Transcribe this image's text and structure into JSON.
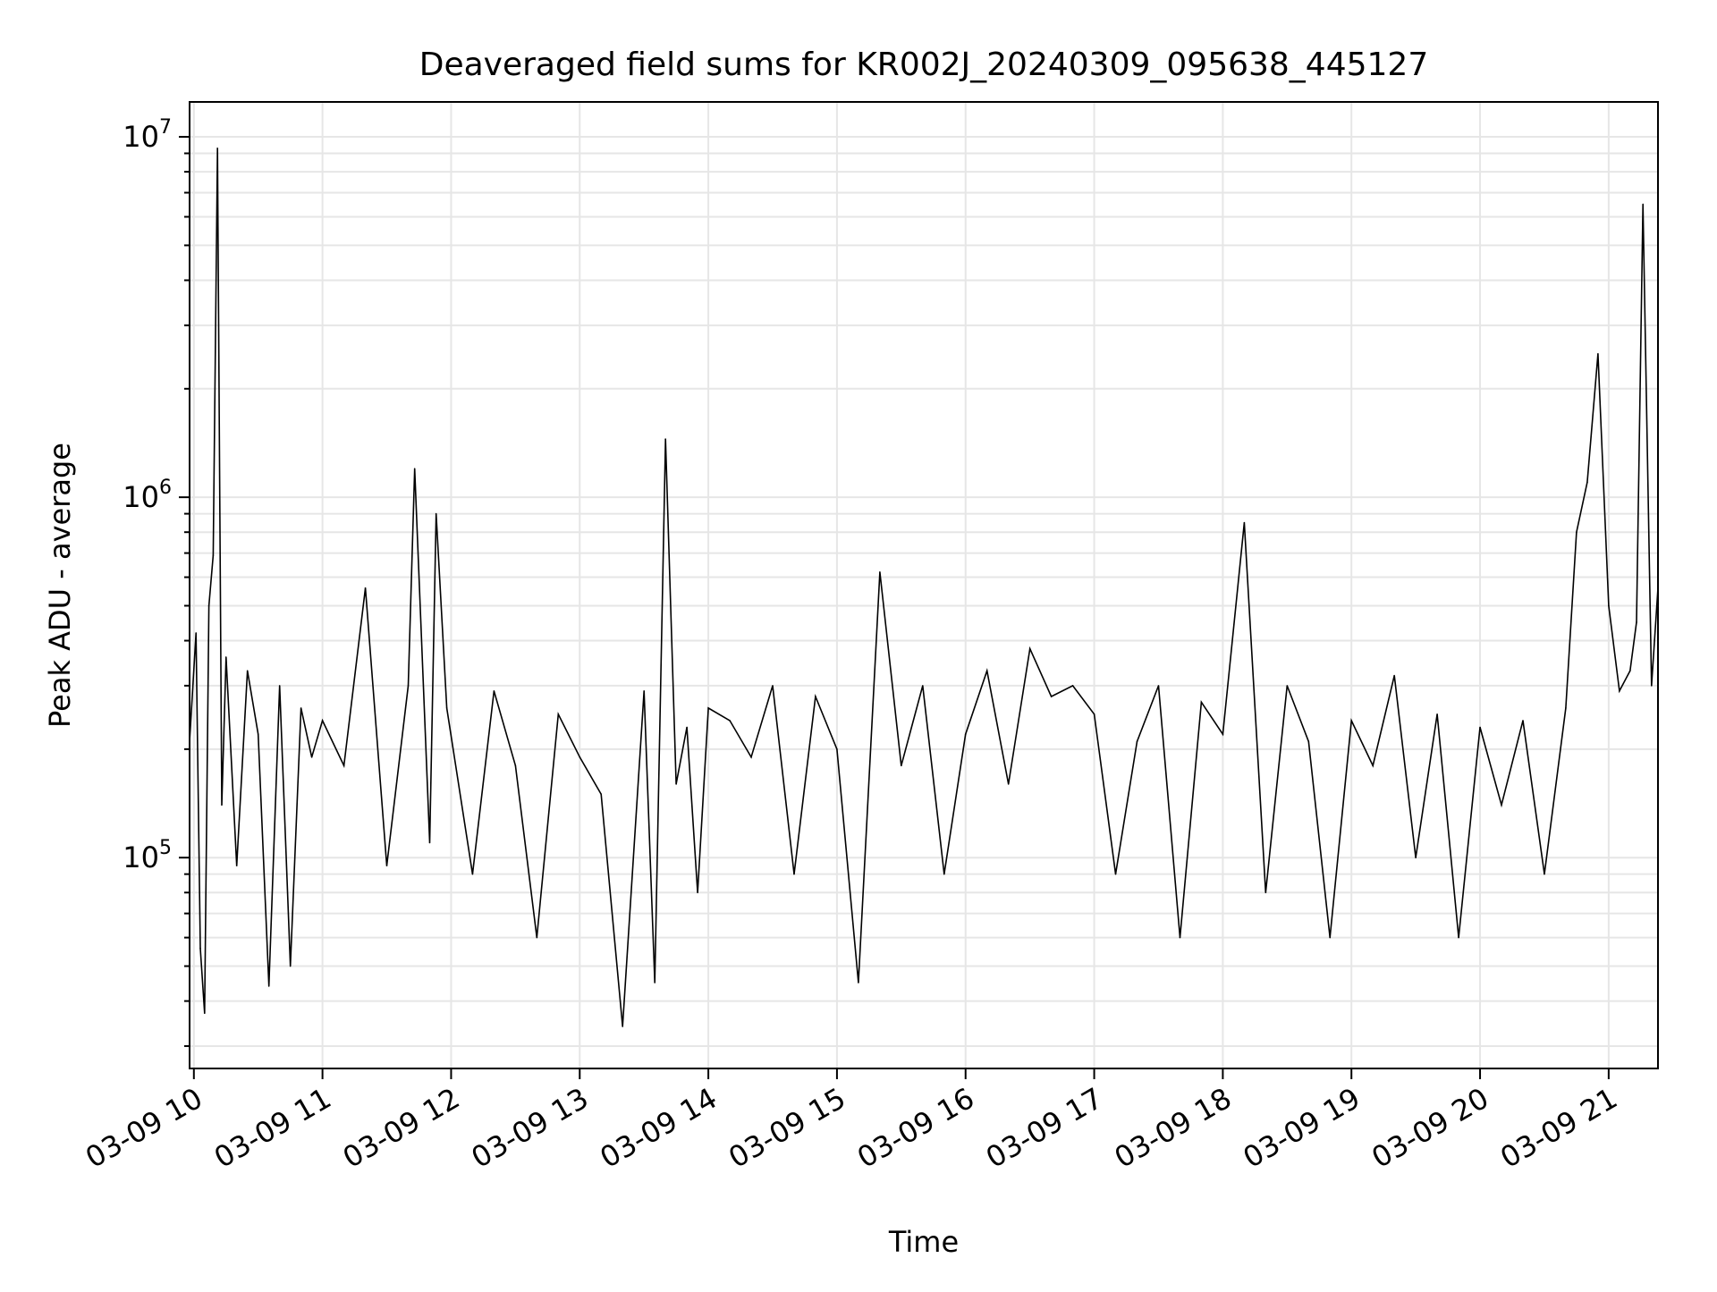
{
  "chart_data": {
    "type": "line",
    "title": "Deaveraged field sums for KR002J_20240309_095638_445127",
    "xlabel": "Time",
    "ylabel": "Peak ADU - average",
    "yscale": "log",
    "ylim": [
      26000,
      12500000
    ],
    "xlim": [
      "03-09 09:58",
      "03-09 21:23"
    ],
    "grid": true,
    "grid_minor": true,
    "line_color": "#000000",
    "x_ticks": [
      {
        "value": "03-09 10:00",
        "label": "03-09 10"
      },
      {
        "value": "03-09 11:00",
        "label": "03-09 11"
      },
      {
        "value": "03-09 12:00",
        "label": "03-09 12"
      },
      {
        "value": "03-09 13:00",
        "label": "03-09 13"
      },
      {
        "value": "03-09 14:00",
        "label": "03-09 14"
      },
      {
        "value": "03-09 15:00",
        "label": "03-09 15"
      },
      {
        "value": "03-09 16:00",
        "label": "03-09 16"
      },
      {
        "value": "03-09 17:00",
        "label": "03-09 17"
      },
      {
        "value": "03-09 18:00",
        "label": "03-09 18"
      },
      {
        "value": "03-09 19:00",
        "label": "03-09 19"
      },
      {
        "value": "03-09 20:00",
        "label": "03-09 20"
      },
      {
        "value": "03-09 21:00",
        "label": "03-09 21"
      }
    ],
    "y_ticks": [
      {
        "value": 100000,
        "base": "10",
        "exp": "5"
      },
      {
        "value": 1000000,
        "base": "10",
        "exp": "6"
      },
      {
        "value": 10000000,
        "base": "10",
        "exp": "7"
      }
    ],
    "series": [
      {
        "x": [
          "03-09 09:58",
          "03-09 10:01",
          "03-09 10:03",
          "03-09 10:05",
          "03-09 10:07",
          "03-09 10:09",
          "03-09 10:11",
          "03-09 10:13",
          "03-09 10:15",
          "03-09 10:20",
          "03-09 10:25",
          "03-09 10:30",
          "03-09 10:35",
          "03-09 10:40",
          "03-09 10:45",
          "03-09 10:50",
          "03-09 10:55",
          "03-09 11:00",
          "03-09 11:10",
          "03-09 11:20",
          "03-09 11:30",
          "03-09 11:40",
          "03-09 11:43",
          "03-09 11:50",
          "03-09 11:53",
          "03-09 11:58",
          "03-09 12:10",
          "03-09 12:20",
          "03-09 12:30",
          "03-09 12:40",
          "03-09 12:50",
          "03-09 13:00",
          "03-09 13:10",
          "03-09 13:20",
          "03-09 13:30",
          "03-09 13:35",
          "03-09 13:40",
          "03-09 13:45",
          "03-09 13:50",
          "03-09 13:55",
          "03-09 14:00",
          "03-09 14:10",
          "03-09 14:20",
          "03-09 14:30",
          "03-09 14:40",
          "03-09 14:50",
          "03-09 15:00",
          "03-09 15:10",
          "03-09 15:20",
          "03-09 15:30",
          "03-09 15:40",
          "03-09 15:50",
          "03-09 16:00",
          "03-09 16:10",
          "03-09 16:20",
          "03-09 16:30",
          "03-09 16:40",
          "03-09 16:50",
          "03-09 17:00",
          "03-09 17:10",
          "03-09 17:20",
          "03-09 17:30",
          "03-09 17:40",
          "03-09 17:50",
          "03-09 18:00",
          "03-09 18:10",
          "03-09 18:20",
          "03-09 18:30",
          "03-09 18:40",
          "03-09 18:50",
          "03-09 19:00",
          "03-09 19:10",
          "03-09 19:20",
          "03-09 19:30",
          "03-09 19:40",
          "03-09 19:50",
          "03-09 20:00",
          "03-09 20:10",
          "03-09 20:20",
          "03-09 20:30",
          "03-09 20:40",
          "03-09 20:45",
          "03-09 20:50",
          "03-09 20:55",
          "03-09 21:00",
          "03-09 21:05",
          "03-09 21:10",
          "03-09 21:13",
          "03-09 21:16",
          "03-09 21:20",
          "03-09 21:23"
        ],
        "y": [
          210000,
          420000,
          56000,
          37000,
          500000,
          690000,
          9300000,
          140000,
          360000,
          95000,
          330000,
          220000,
          44000,
          300000,
          50000,
          260000,
          190000,
          240000,
          180000,
          560000,
          95000,
          300000,
          1200000,
          110000,
          900000,
          260000,
          90000,
          290000,
          180000,
          60000,
          250000,
          190000,
          150000,
          34000,
          290000,
          45000,
          1450000,
          160000,
          230000,
          80000,
          260000,
          240000,
          190000,
          300000,
          90000,
          280000,
          200000,
          45000,
          620000,
          180000,
          300000,
          90000,
          220000,
          330000,
          160000,
          380000,
          280000,
          300000,
          250000,
          90000,
          210000,
          300000,
          60000,
          270000,
          220000,
          850000,
          80000,
          300000,
          210000,
          60000,
          240000,
          180000,
          320000,
          100000,
          250000,
          60000,
          230000,
          140000,
          240000,
          90000,
          260000,
          800000,
          1100000,
          2500000,
          500000,
          290000,
          330000,
          450000,
          6500000,
          300000,
          560000
        ]
      }
    ]
  }
}
